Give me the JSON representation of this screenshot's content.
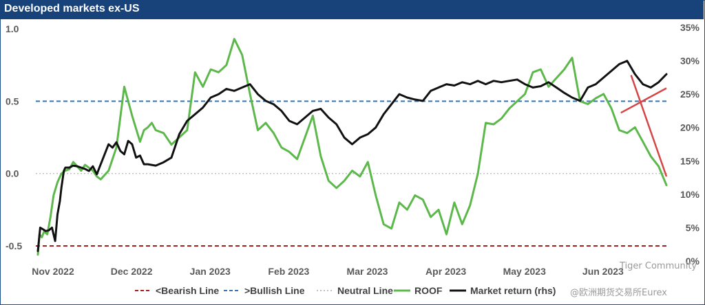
{
  "chart_data": {
    "type": "line",
    "title": "Developed markets ex-US",
    "x_ticks": [
      "Nov 2022",
      "Dec 2022",
      "Jan 2023",
      "Feb 2023",
      "Mar 2023",
      "Apr 2023",
      "May 2023",
      "Jun 2023"
    ],
    "y_left": {
      "range": [
        -0.55,
        1.0
      ],
      "ticks": [
        "1.0",
        "0.5",
        "0.0",
        "-0.5"
      ],
      "tick_values": [
        1.0,
        0.5,
        0.0,
        -0.5
      ]
    },
    "y_right": {
      "range": [
        0,
        35
      ],
      "ticks": [
        "35%",
        "30%",
        "25%",
        "20%",
        "15%",
        "10%",
        "5%",
        "0%"
      ],
      "tick_values": [
        35,
        30,
        25,
        20,
        15,
        10,
        5,
        0
      ]
    },
    "reference_lines": [
      {
        "name": "<Bearish Line",
        "value": -0.5,
        "color": "#a01f1f",
        "style": "dashed"
      },
      {
        "name": ">Bullish Line",
        "value": 0.5,
        "color": "#2e75b6",
        "style": "dashed"
      },
      {
        "name": "Neutral Line",
        "value": 0.0,
        "color": "#bfbfbf",
        "style": "dotted"
      }
    ],
    "series": [
      {
        "name": "ROOF",
        "axis": "left",
        "color": "#5cb84a",
        "x": [
          0.0,
          0.02,
          0.05,
          0.08,
          0.12,
          0.16,
          0.2,
          0.25,
          0.3,
          0.35,
          0.4,
          0.45,
          0.5,
          0.55,
          0.6,
          0.65,
          0.7,
          0.75,
          0.8,
          0.85,
          0.9,
          0.95,
          1.0,
          1.1,
          1.2,
          1.3,
          1.35,
          1.4,
          1.45,
          1.5,
          1.6,
          1.7,
          1.8,
          1.9,
          2.0,
          2.1,
          2.2,
          2.3,
          2.4,
          2.5,
          2.6,
          2.7,
          2.8,
          2.9,
          3.0,
          3.1,
          3.2,
          3.3,
          3.4,
          3.5,
          3.6,
          3.7,
          3.8,
          3.9,
          4.0,
          4.1,
          4.2,
          4.3,
          4.4,
          4.5,
          4.6,
          4.7,
          4.8,
          4.9,
          5.0,
          5.1,
          5.2,
          5.3,
          5.4,
          5.5,
          5.6,
          5.7,
          5.8,
          5.9,
          6.0,
          6.1,
          6.2,
          6.3,
          6.4,
          6.5,
          6.6,
          6.7,
          6.8,
          6.9,
          7.0,
          7.1,
          7.2,
          7.3,
          7.4,
          7.5,
          7.6,
          7.7,
          7.8,
          7.9,
          8.0
        ],
        "values": [
          -0.56,
          -0.42,
          -0.44,
          -0.4,
          -0.42,
          -0.3,
          -0.15,
          -0.06,
          0.0,
          0.02,
          0.03,
          0.08,
          0.05,
          0.02,
          0.06,
          0.04,
          0.02,
          -0.02,
          -0.04,
          -0.01,
          0.02,
          0.1,
          0.18,
          0.6,
          0.4,
          0.22,
          0.3,
          0.32,
          0.35,
          0.3,
          0.28,
          0.2,
          0.25,
          0.3,
          0.7,
          0.6,
          0.72,
          0.7,
          0.75,
          0.93,
          0.82,
          0.55,
          0.3,
          0.35,
          0.28,
          0.18,
          0.15,
          0.1,
          0.25,
          0.4,
          0.12,
          -0.05,
          -0.1,
          -0.05,
          0.02,
          -0.02,
          0.08,
          -0.15,
          -0.35,
          -0.38,
          -0.2,
          -0.25,
          -0.15,
          -0.18,
          -0.3,
          -0.25,
          -0.42,
          -0.2,
          -0.35,
          -0.22,
          0.0,
          0.35,
          0.34,
          0.38,
          0.45,
          0.5,
          0.55,
          0.7,
          0.72,
          0.6,
          0.66,
          0.72,
          0.8,
          0.5,
          0.48,
          0.52,
          0.55,
          0.45,
          0.3,
          0.28,
          0.32,
          0.22,
          0.12,
          0.05,
          -0.08
        ]
      },
      {
        "name": "Market return (rhs)",
        "axis": "right",
        "color": "#111111",
        "x": [
          0.0,
          0.03,
          0.06,
          0.1,
          0.14,
          0.18,
          0.22,
          0.25,
          0.28,
          0.3,
          0.33,
          0.35,
          0.4,
          0.45,
          0.5,
          0.55,
          0.6,
          0.65,
          0.7,
          0.75,
          0.8,
          0.85,
          0.9,
          0.95,
          1.0,
          1.05,
          1.1,
          1.15,
          1.2,
          1.25,
          1.3,
          1.35,
          1.4,
          1.5,
          1.6,
          1.7,
          1.8,
          1.9,
          2.0,
          2.1,
          2.2,
          2.3,
          2.4,
          2.5,
          2.6,
          2.7,
          2.8,
          2.9,
          3.0,
          3.1,
          3.2,
          3.3,
          3.4,
          3.5,
          3.6,
          3.7,
          3.8,
          3.9,
          4.0,
          4.1,
          4.2,
          4.3,
          4.4,
          4.5,
          4.6,
          4.7,
          4.8,
          4.9,
          5.0,
          5.1,
          5.2,
          5.3,
          5.4,
          5.5,
          5.6,
          5.7,
          5.8,
          5.9,
          6.0,
          6.1,
          6.2,
          6.3,
          6.4,
          6.5,
          6.6,
          6.7,
          6.8,
          6.9,
          7.0,
          7.1,
          7.2,
          7.3,
          7.4,
          7.5,
          7.6,
          7.7,
          7.8,
          7.9,
          8.0
        ],
        "values": [
          1.5,
          5.0,
          4.8,
          4.5,
          4.6,
          5.0,
          3.0,
          7.0,
          9.0,
          11.0,
          13.5,
          14.0,
          14.0,
          14.3,
          14.2,
          14.0,
          13.8,
          13.5,
          14.2,
          13.0,
          14.5,
          16.0,
          17.5,
          17.0,
          17.8,
          16.5,
          16.0,
          18.0,
          17.5,
          15.5,
          15.8,
          14.5,
          14.5,
          14.3,
          14.8,
          15.5,
          19.0,
          21.0,
          22.0,
          23.0,
          24.5,
          25.0,
          25.8,
          25.5,
          26.0,
          26.5,
          25.0,
          24.0,
          23.5,
          22.5,
          21.0,
          20.5,
          21.5,
          22.5,
          22.8,
          21.5,
          20.5,
          18.5,
          17.5,
          18.5,
          19.0,
          20.0,
          22.0,
          23.5,
          25.0,
          24.5,
          24.2,
          24.0,
          25.5,
          26.0,
          26.5,
          26.3,
          26.8,
          26.5,
          27.0,
          26.5,
          27.0,
          26.8,
          27.0,
          27.2,
          26.5,
          26.0,
          26.2,
          26.8,
          26.0,
          25.2,
          24.5,
          24.0,
          26.0,
          26.5,
          27.5,
          28.5,
          29.5,
          30.0,
          28.0,
          26.5,
          26.0,
          26.8,
          28.0
        ]
      }
    ],
    "legend": {
      "placement": "bottom",
      "items": [
        {
          "label": "<Bearish Line",
          "color": "#a01f1f",
          "style": "dashed"
        },
        {
          "label": ">Bullish Line",
          "color": "#2e75b6",
          "style": "dashed"
        },
        {
          "label": "Neutral Line",
          "color": "#bfbfbf",
          "style": "dotted"
        },
        {
          "label": "ROOF",
          "color": "#5cb84a",
          "style": "solid"
        },
        {
          "label": "Market return (rhs)",
          "color": "#111111",
          "style": "solid"
        }
      ]
    },
    "trend_annotations": [
      {
        "color": "#d64545",
        "from": {
          "x": 7.55,
          "y_left": 0.68
        },
        "to": {
          "x": 8.0,
          "y_left": -0.02
        }
      },
      {
        "color": "#d64545",
        "from": {
          "x": 7.42,
          "y_left": 0.42
        },
        "to": {
          "x": 8.0,
          "y_left": 0.59
        }
      }
    ],
    "grid": false
  },
  "watermark": {
    "line1": "Tiger Community",
    "line2": "@欧洲期货交易所Eurex"
  }
}
